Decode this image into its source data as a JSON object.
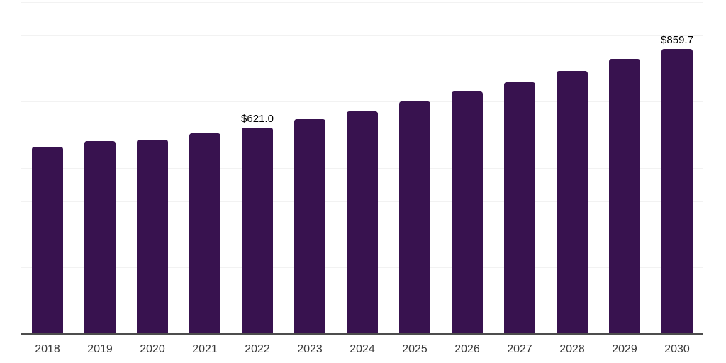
{
  "chart_data": {
    "type": "bar",
    "title": "",
    "xlabel": "",
    "ylabel": "",
    "categories": [
      "2018",
      "2019",
      "2020",
      "2021",
      "2022",
      "2023",
      "2024",
      "2025",
      "2026",
      "2027",
      "2028",
      "2029",
      "2030"
    ],
    "values": [
      564,
      581,
      585,
      604,
      621.0,
      647,
      671,
      700,
      730,
      759,
      792,
      828,
      859.7
    ],
    "point_labels": [
      null,
      null,
      null,
      null,
      "$621.0",
      null,
      null,
      null,
      null,
      null,
      null,
      null,
      "$859.7"
    ],
    "ylim": [
      0,
      1000
    ],
    "gridline_step": 100,
    "grid": "horizontal-only",
    "legend_position": "none",
    "colors": {
      "bar": "#38124F",
      "background": "#FFFFFF",
      "gridline": "#F2F2F2",
      "axis_line": "#4D4D4D",
      "tick_label": "#3A3A3A",
      "data_label": "#000000"
    }
  }
}
